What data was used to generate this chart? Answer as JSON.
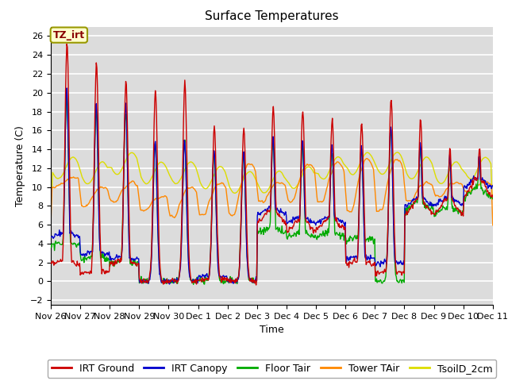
{
  "title": "Surface Temperatures",
  "ylabel": "Temperature (C)",
  "xlabel": "Time",
  "ylim": [
    -2.5,
    27
  ],
  "yticks": [
    -2,
    0,
    2,
    4,
    6,
    8,
    10,
    12,
    14,
    16,
    18,
    20,
    22,
    24,
    26
  ],
  "x_labels": [
    "Nov 26",
    "Nov 27",
    "Nov 28",
    "Nov 29",
    "Nov 30",
    "Dec 1",
    "Dec 2",
    "Dec 3",
    "Dec 4",
    "Dec 5",
    "Dec 6",
    "Dec 7",
    "Dec 8",
    "Dec 9",
    "Dec 10",
    "Dec 11"
  ],
  "colors": {
    "IRT Ground": "#cc0000",
    "IRT Canopy": "#0000cc",
    "Floor Tair": "#00aa00",
    "Tower TAir": "#ff8800",
    "TsoilD_2cm": "#dddd00"
  },
  "lw": 1.0,
  "annotation_text": "TZ_irt",
  "plot_bg": "#dcdcdc",
  "grid_color": "#ffffff",
  "title_fontsize": 11,
  "axis_label_fontsize": 9,
  "tick_fontsize": 8,
  "legend_fontsize": 9
}
